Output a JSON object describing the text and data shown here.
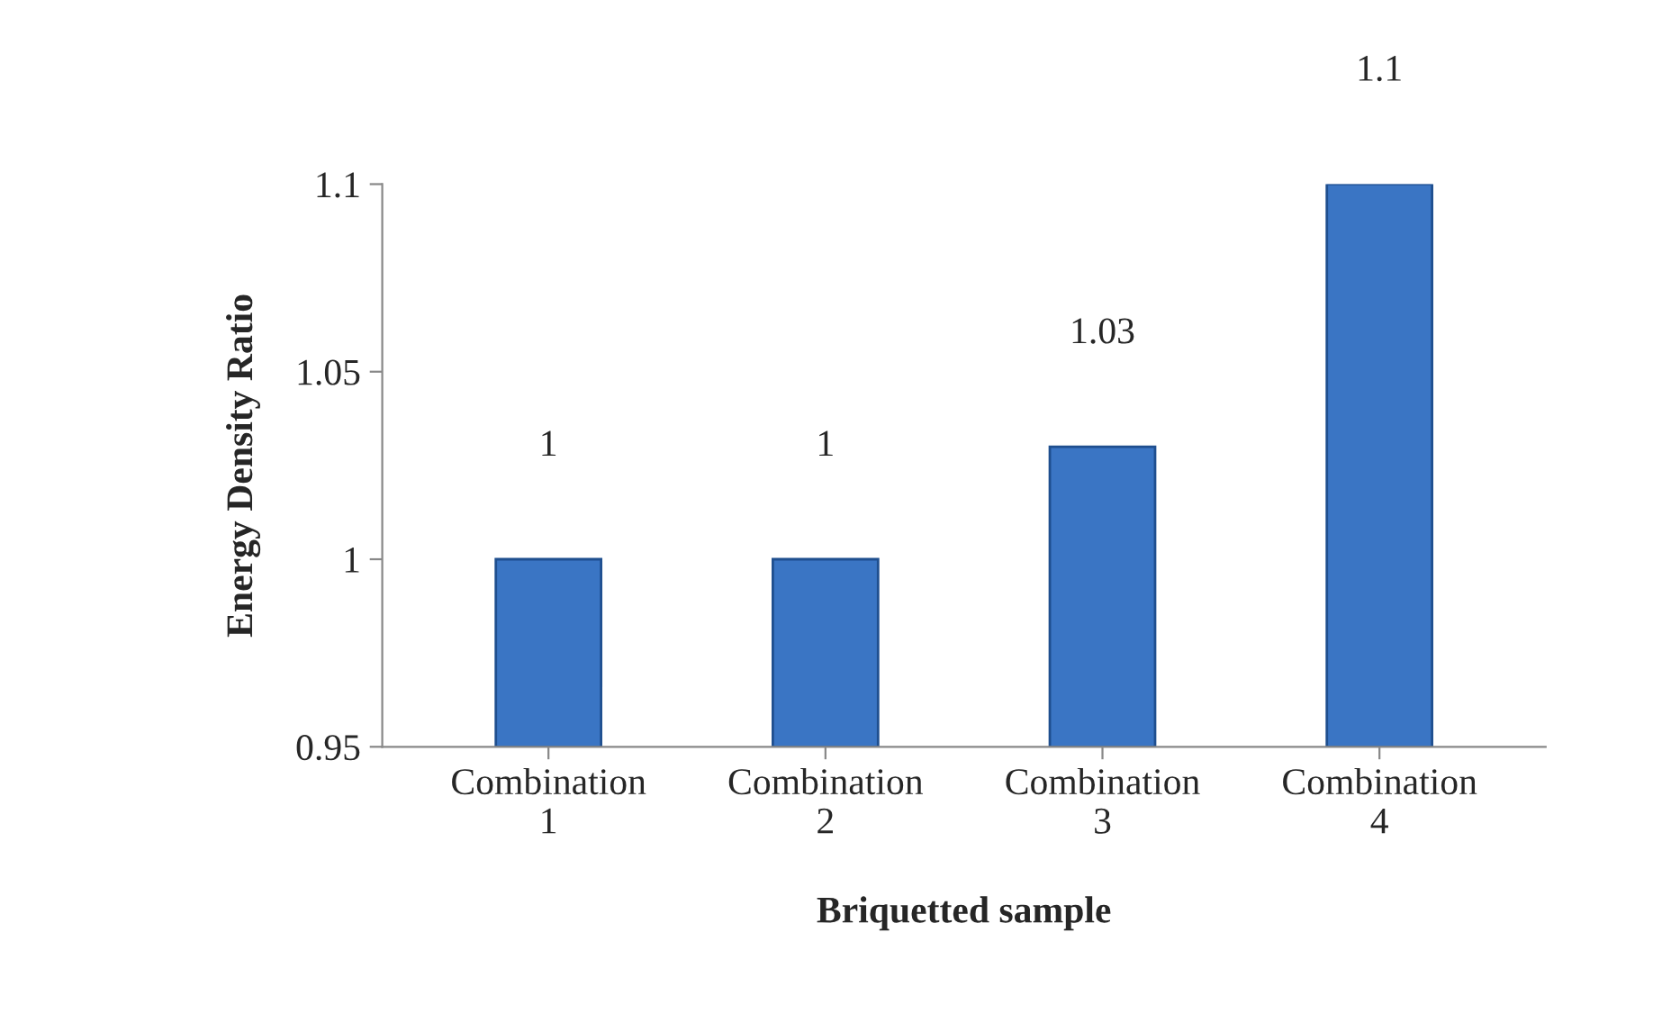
{
  "chart_data": {
    "type": "bar",
    "xlabel": "Briquetted sample",
    "ylabel": "Energy Density Ratio",
    "categories": [
      "Combination 1",
      "Combination 2",
      "Combination 3",
      "Combination 4"
    ],
    "values": [
      1,
      1,
      1.03,
      1.1
    ],
    "color": "#3a75c4",
    "ylim": [
      0.95,
      1.1
    ],
    "yticks": [
      0.95,
      1,
      1.05,
      1.1
    ],
    "data_labels": true
  }
}
